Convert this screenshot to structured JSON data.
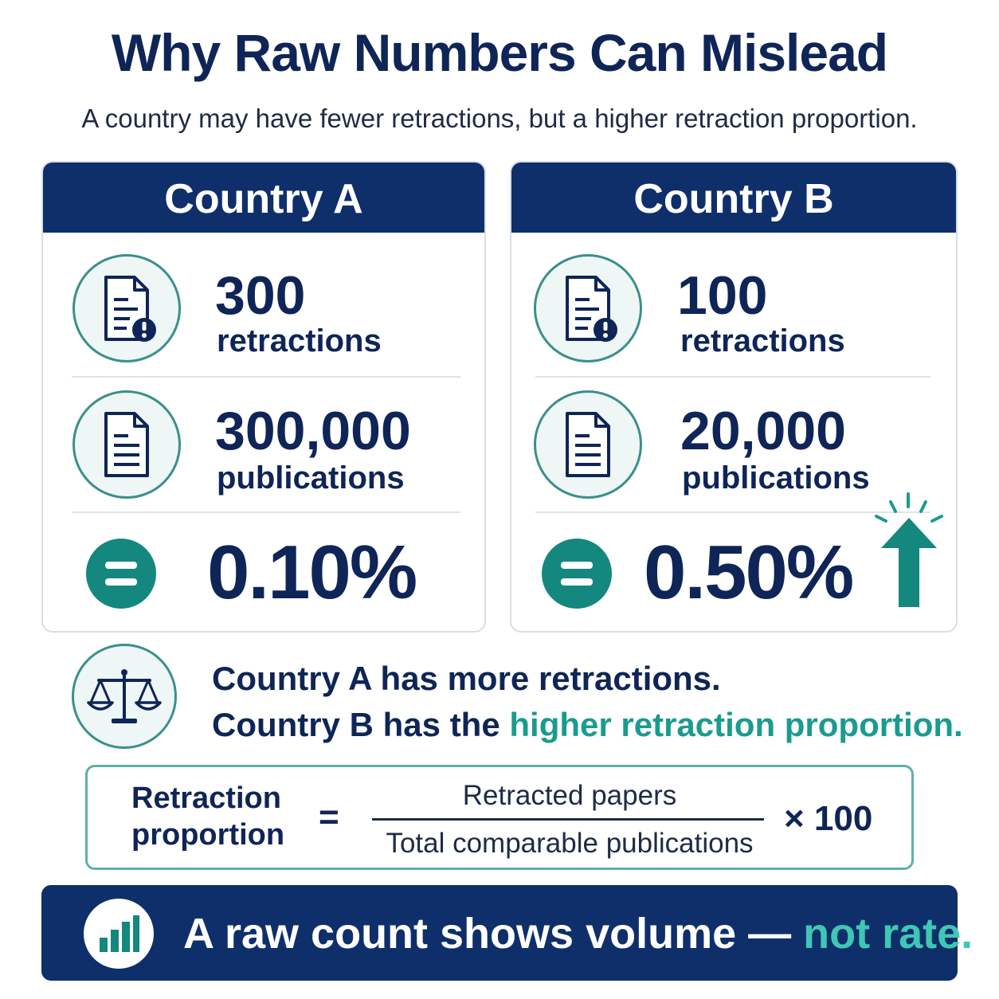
{
  "header": {
    "title": "Why Raw Numbers Can Mislead",
    "subtitle": "A country may have fewer retractions, but a higher retraction proportion."
  },
  "country_a": {
    "name": "Country A",
    "retractions_value": "300",
    "retractions_label": "retractions",
    "publications_value": "300,000",
    "publications_label": "publications",
    "proportion": "0.10%"
  },
  "country_b": {
    "name": "Country B",
    "retractions_value": "100",
    "retractions_label": "retractions",
    "publications_value": "20,000",
    "publications_label": "publications",
    "proportion": "0.50%"
  },
  "conclusion": {
    "line1": "Country A has more retractions.",
    "line2_prefix": "Country B has the ",
    "line2_highlight": "higher retraction proportion."
  },
  "formula": {
    "label_line1": "Retraction",
    "label_line2": "proportion",
    "equals": "=",
    "numerator": "Retracted papers",
    "denominator": "Total comparable publications",
    "multiplier": "× 100"
  },
  "banner": {
    "text_prefix": "A raw count shows volume — ",
    "text_highlight": "not rate."
  },
  "colors": {
    "navy": "#0f2f6b",
    "teal": "#14877e",
    "teal_text": "#1a9b8f"
  },
  "icons": [
    "document-alert-icon",
    "document-icon",
    "equals-icon",
    "arrow-up-icon",
    "scale-icon",
    "bar-chart-icon"
  ]
}
